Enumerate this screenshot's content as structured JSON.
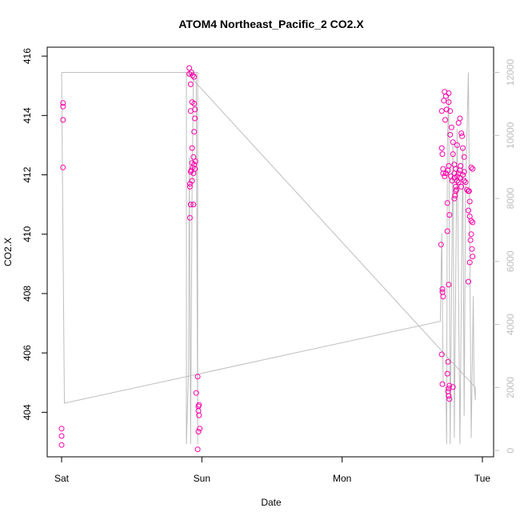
{
  "chart_data": {
    "type": "scatter",
    "title": "ATOM4 Northeast_Pacific_2 CO2.X",
    "xlabel": "Date",
    "ylabel": "CO2.X",
    "xlim": [
      0,
      3.06
    ],
    "ylim": [
      402.5,
      416.3
    ],
    "y2lim": [
      -200,
      12800
    ],
    "x_ticks": [
      {
        "value": 0,
        "label": "Sat"
      },
      {
        "value": 1,
        "label": "Sun"
      },
      {
        "value": 2,
        "label": "Mon"
      },
      {
        "value": 3,
        "label": "Tue"
      }
    ],
    "y_ticks": [
      404,
      406,
      408,
      410,
      412,
      414,
      416
    ],
    "y2_ticks": [
      0,
      2000,
      4000,
      6000,
      8000,
      10000,
      12000
    ],
    "colors": {
      "points": "#ff00aa",
      "line": "#bebebe",
      "right_axis": "#bebebe"
    },
    "series": [
      {
        "values": [
          [
            0.01,
            414.3
          ],
          [
            0.01,
            414.42
          ],
          [
            0.01,
            413.85
          ],
          [
            0.01,
            412.25
          ],
          [
            0.0,
            403.45
          ],
          [
            0.0,
            403.2
          ],
          [
            0.0,
            402.9
          ],
          [
            0.91,
            415.6
          ],
          [
            0.91,
            415.4
          ],
          [
            0.925,
            415.45
          ],
          [
            0.935,
            415.35
          ],
          [
            0.945,
            415.3
          ],
          [
            0.92,
            415.05
          ],
          [
            0.92,
            414.15
          ],
          [
            0.93,
            414.45
          ],
          [
            0.945,
            414.4
          ],
          [
            0.95,
            414.2
          ],
          [
            0.95,
            413.9
          ],
          [
            0.945,
            413.45
          ],
          [
            0.93,
            412.9
          ],
          [
            0.94,
            412.6
          ],
          [
            0.93,
            412.4
          ],
          [
            0.935,
            412.25
          ],
          [
            0.94,
            412.05
          ],
          [
            0.945,
            412.35
          ],
          [
            0.95,
            412.2
          ],
          [
            0.955,
            412.45
          ],
          [
            0.92,
            412.1
          ],
          [
            0.925,
            412.15
          ],
          [
            0.915,
            411.7
          ],
          [
            0.915,
            411.6
          ],
          [
            0.93,
            411.8
          ],
          [
            0.92,
            411.0
          ],
          [
            0.94,
            411.0
          ],
          [
            0.915,
            410.55
          ],
          [
            0.97,
            405.2
          ],
          [
            0.96,
            404.65
          ],
          [
            0.975,
            404.2
          ],
          [
            0.98,
            404.25
          ],
          [
            0.975,
            404.05
          ],
          [
            0.98,
            403.9
          ],
          [
            0.985,
            403.45
          ],
          [
            0.975,
            403.35
          ],
          [
            0.97,
            402.75
          ],
          [
            2.71,
            414.15
          ],
          [
            2.725,
            414.5
          ],
          [
            2.73,
            414.8
          ],
          [
            2.74,
            414.65
          ],
          [
            2.745,
            414.2
          ],
          [
            2.735,
            413.85
          ],
          [
            2.76,
            414.75
          ],
          [
            2.76,
            414.45
          ],
          [
            2.77,
            414.15
          ],
          [
            2.78,
            413.6
          ],
          [
            2.77,
            413.35
          ],
          [
            2.79,
            413.1
          ],
          [
            2.79,
            412.7
          ],
          [
            2.8,
            412.35
          ],
          [
            2.81,
            412.2
          ],
          [
            2.8,
            412.05
          ],
          [
            2.82,
            413.0
          ],
          [
            2.83,
            413.75
          ],
          [
            2.84,
            413.9
          ],
          [
            2.85,
            413.4
          ],
          [
            2.855,
            413.3
          ],
          [
            2.86,
            412.9
          ],
          [
            2.87,
            412.6
          ],
          [
            2.87,
            412.1
          ],
          [
            2.88,
            411.75
          ],
          [
            2.89,
            411.5
          ],
          [
            2.9,
            411.45
          ],
          [
            2.905,
            411.45
          ],
          [
            2.91,
            411.1
          ],
          [
            2.9,
            410.8
          ],
          [
            2.91,
            410.6
          ],
          [
            2.92,
            410.45
          ],
          [
            2.93,
            410.4
          ],
          [
            2.92,
            410.0
          ],
          [
            2.915,
            409.8
          ],
          [
            2.925,
            409.5
          ],
          [
            2.93,
            409.25
          ],
          [
            2.91,
            409.05
          ],
          [
            2.9,
            408.4
          ],
          [
            2.92,
            412.25
          ],
          [
            2.93,
            412.2
          ],
          [
            2.73,
            411.95
          ],
          [
            2.74,
            412.05
          ],
          [
            2.755,
            412.15
          ],
          [
            2.76,
            412.3
          ],
          [
            2.775,
            411.95
          ],
          [
            2.785,
            411.8
          ],
          [
            2.8,
            411.9
          ],
          [
            2.81,
            411.6
          ],
          [
            2.82,
            411.95
          ],
          [
            2.83,
            412.05
          ],
          [
            2.84,
            412.15
          ],
          [
            2.845,
            412.3
          ],
          [
            2.86,
            412.0
          ],
          [
            2.87,
            411.8
          ],
          [
            2.71,
            412.9
          ],
          [
            2.715,
            412.7
          ],
          [
            2.72,
            412.2
          ],
          [
            2.72,
            412.05
          ],
          [
            2.75,
            411.05
          ],
          [
            2.765,
            410.65
          ],
          [
            2.75,
            410.1
          ],
          [
            2.705,
            409.65
          ],
          [
            2.76,
            408.3
          ],
          [
            2.715,
            408.15
          ],
          [
            2.715,
            408.05
          ],
          [
            2.72,
            407.9
          ],
          [
            2.71,
            405.95
          ],
          [
            2.755,
            405.7
          ],
          [
            2.75,
            405.3
          ],
          [
            2.715,
            404.95
          ],
          [
            2.76,
            404.8
          ],
          [
            2.765,
            404.9
          ],
          [
            2.755,
            404.7
          ],
          [
            2.76,
            404.55
          ],
          [
            2.765,
            404.45
          ],
          [
            2.79,
            404.85
          ],
          [
            2.8,
            411.2
          ],
          [
            2.805,
            411.3
          ],
          [
            2.81,
            411.45
          ],
          [
            2.815,
            411.5
          ],
          [
            2.82,
            411.8
          ],
          [
            2.83,
            411.75
          ],
          [
            2.84,
            411.9
          ],
          [
            2.85,
            411.6
          ]
        ]
      },
      {
        "axis": "right",
        "values": [
          [
            0.0,
            12000
          ],
          [
            0.0,
            12000
          ],
          [
            0.02,
            1500
          ],
          [
            2.7,
            4100
          ],
          [
            2.71,
            6900
          ],
          [
            2.72,
            2200
          ],
          [
            2.74,
            2000
          ],
          [
            2.745,
            200
          ],
          [
            2.75,
            9800
          ],
          [
            2.76,
            11300
          ],
          [
            2.77,
            200
          ],
          [
            2.79,
            9800
          ],
          [
            2.8,
            400
          ],
          [
            2.82,
            10200
          ],
          [
            2.84,
            200
          ],
          [
            2.86,
            9600
          ],
          [
            2.87,
            1100
          ],
          [
            2.88,
            8300
          ],
          [
            2.9,
            12000
          ],
          [
            2.92,
            400
          ],
          [
            2.935,
            4900
          ],
          [
            2.94,
            2100
          ],
          [
            2.95,
            1600
          ],
          [
            2.95,
            2000
          ],
          [
            0.89,
            12000
          ],
          [
            0.89,
            200
          ],
          [
            0.905,
            2500
          ],
          [
            0.91,
            9300
          ],
          [
            0.92,
            200
          ],
          [
            0.93,
            8200
          ],
          [
            0.94,
            12000
          ],
          [
            0.96,
            12000
          ],
          [
            0.97,
            200
          ],
          [
            0.97,
            12000
          ],
          [
            0.0,
            12000
          ]
        ]
      }
    ]
  }
}
